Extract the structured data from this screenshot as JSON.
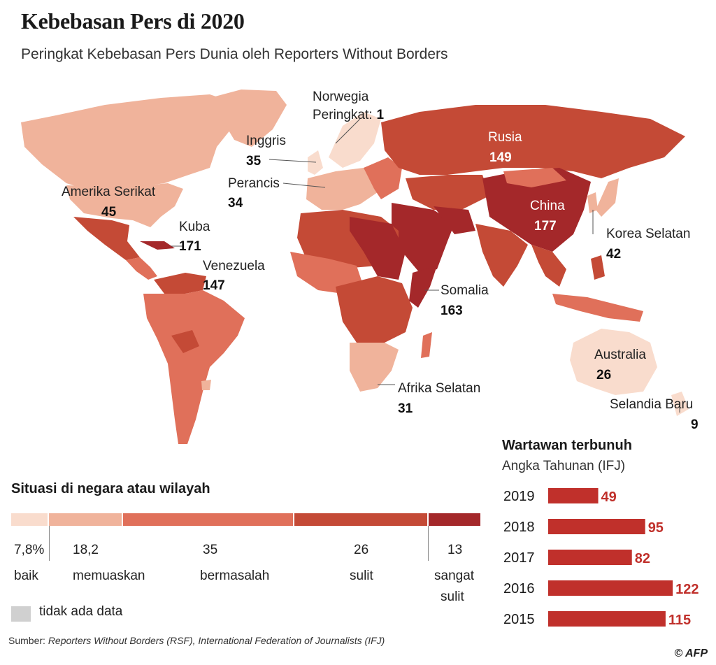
{
  "header": {
    "title": "Kebebasan Pers di 2020",
    "subtitle": "Peringkat Kebebasan Pers Dunia oleh Reporters Without Borders"
  },
  "colors": {
    "baik": "#f9dccd",
    "memuaskan": "#f0b39b",
    "bermasalah": "#e0705a",
    "sulit": "#c44a36",
    "sangat_sulit": "#a4282a",
    "tidak_ada_data": "#d0d0d0",
    "bar": "#c0302b"
  },
  "map_labels": {
    "norwegia": {
      "name": "Norwegia",
      "prefix": "Peringkat:",
      "rank": "1"
    },
    "inggris": {
      "name": "Inggris",
      "rank": "35"
    },
    "perancis": {
      "name": "Perancis",
      "rank": "34"
    },
    "amerika": {
      "name": "Amerika Serikat",
      "rank": "45"
    },
    "kuba": {
      "name": "Kuba",
      "rank": "171"
    },
    "venezuela": {
      "name": "Venezuela",
      "rank": "147"
    },
    "rusia": {
      "name": "Rusia",
      "rank": "149"
    },
    "china": {
      "name": "China",
      "rank": "177"
    },
    "korea": {
      "name": "Korea Selatan",
      "rank": "42"
    },
    "somalia": {
      "name": "Somalia",
      "rank": "163"
    },
    "afrika": {
      "name": "Afrika Selatan",
      "rank": "31"
    },
    "australia": {
      "name": "Australia",
      "rank": "26"
    },
    "selandia": {
      "name": "Selandia Baru",
      "rank": "9"
    }
  },
  "legend": {
    "title": "Situasi di negara atau wilayah",
    "items": [
      {
        "pct": "7,8%",
        "label": "baik"
      },
      {
        "pct": "18,2",
        "label": "memuaskan"
      },
      {
        "pct": "35",
        "label": "bermasalah"
      },
      {
        "pct": "26",
        "label": "sulit"
      },
      {
        "pct": "13",
        "label_line1": "sangat",
        "label_line2": "sulit"
      }
    ],
    "no_data": "tidak ada data"
  },
  "chart_data": {
    "type": "bar",
    "title": "Wartawan terbunuh",
    "subtitle": "Angka Tahunan (IFJ)",
    "categories": [
      "2019",
      "2018",
      "2017",
      "2016",
      "2015"
    ],
    "values": [
      49,
      95,
      82,
      122,
      115
    ]
  },
  "footer": {
    "source_prefix": "Sumber: ",
    "source_text": "Reporters Without Borders (RSF), International Federation of Journalists (IFJ)",
    "credit": "© AFP"
  }
}
